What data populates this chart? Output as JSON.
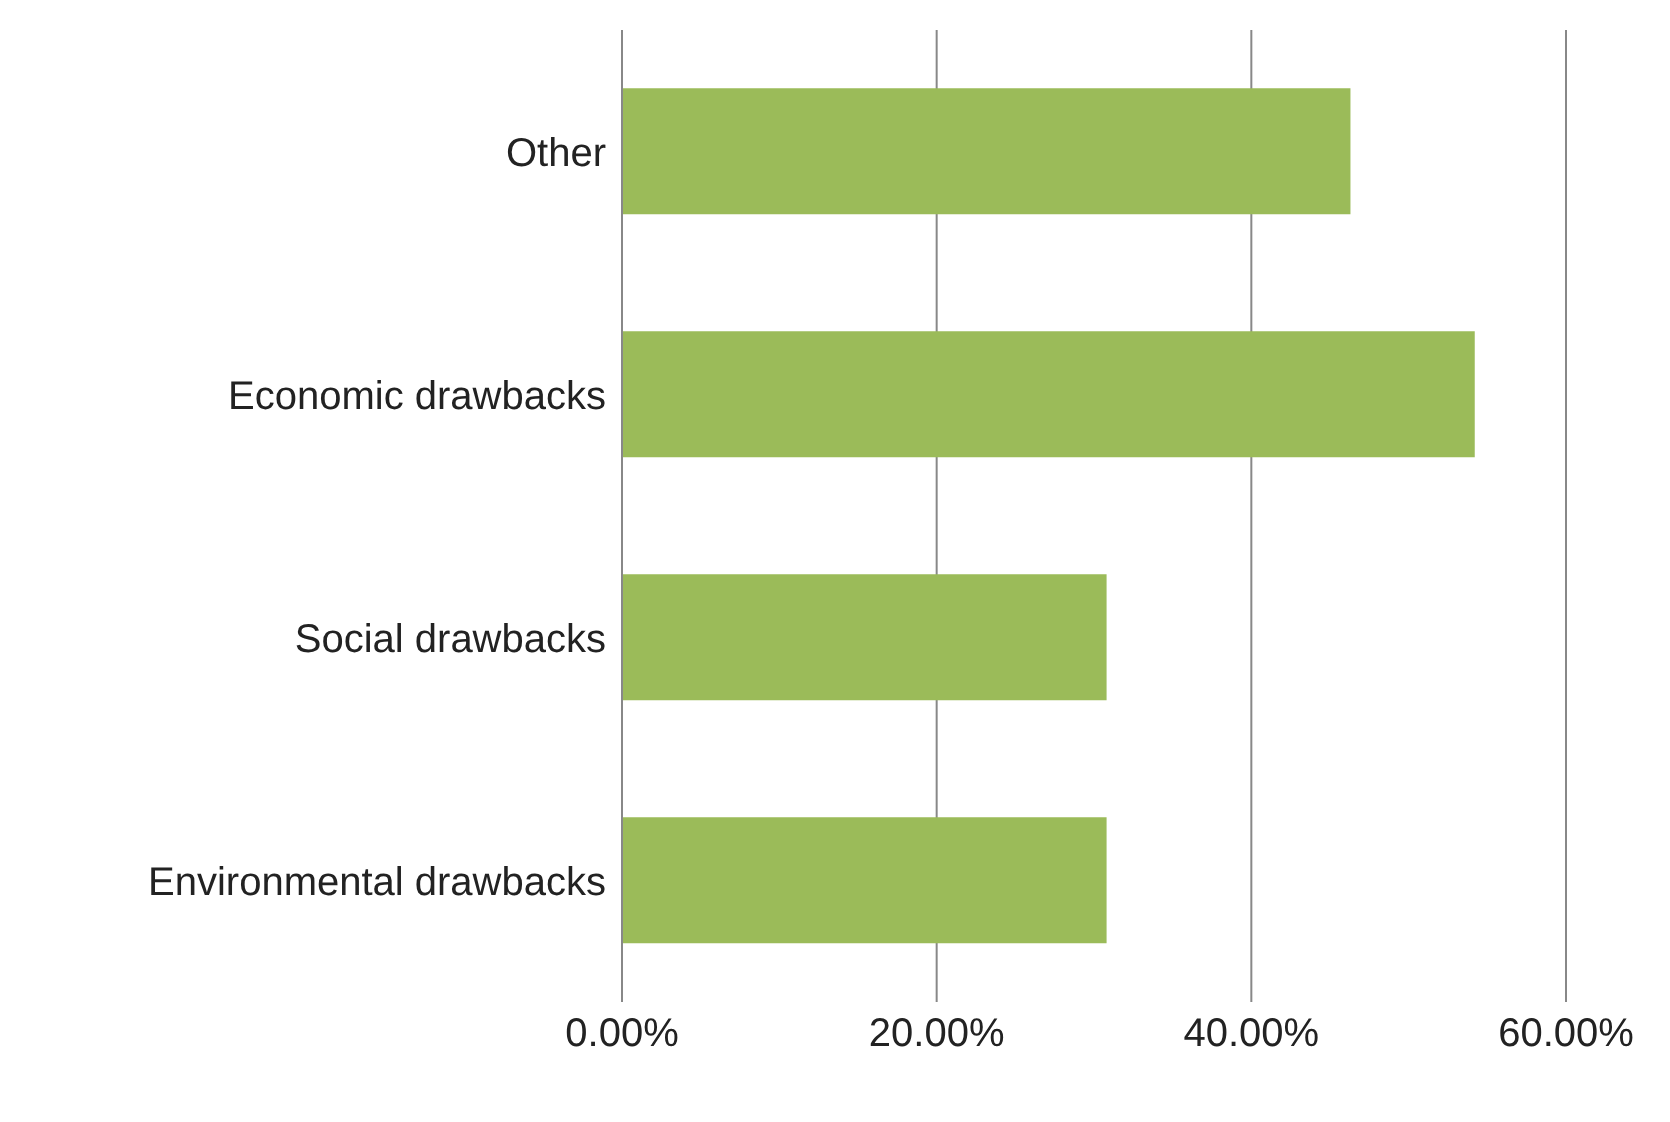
{
  "chart_data": {
    "type": "bar",
    "orientation": "horizontal",
    "categories": [
      "Other",
      "Economic drawbacks",
      "Social drawbacks",
      "Environmental drawbacks"
    ],
    "values": [
      46.3,
      54.2,
      30.8,
      30.8
    ],
    "color": "#9bbb59",
    "xlim": [
      0,
      60
    ],
    "xticks": [
      {
        "value": 0,
        "label": "0.00%"
      },
      {
        "value": 20,
        "label": "20.00%"
      },
      {
        "value": 40,
        "label": "40.00%"
      },
      {
        "value": 60,
        "label": "60.00%"
      }
    ],
    "grid": "x",
    "legend": false
  }
}
